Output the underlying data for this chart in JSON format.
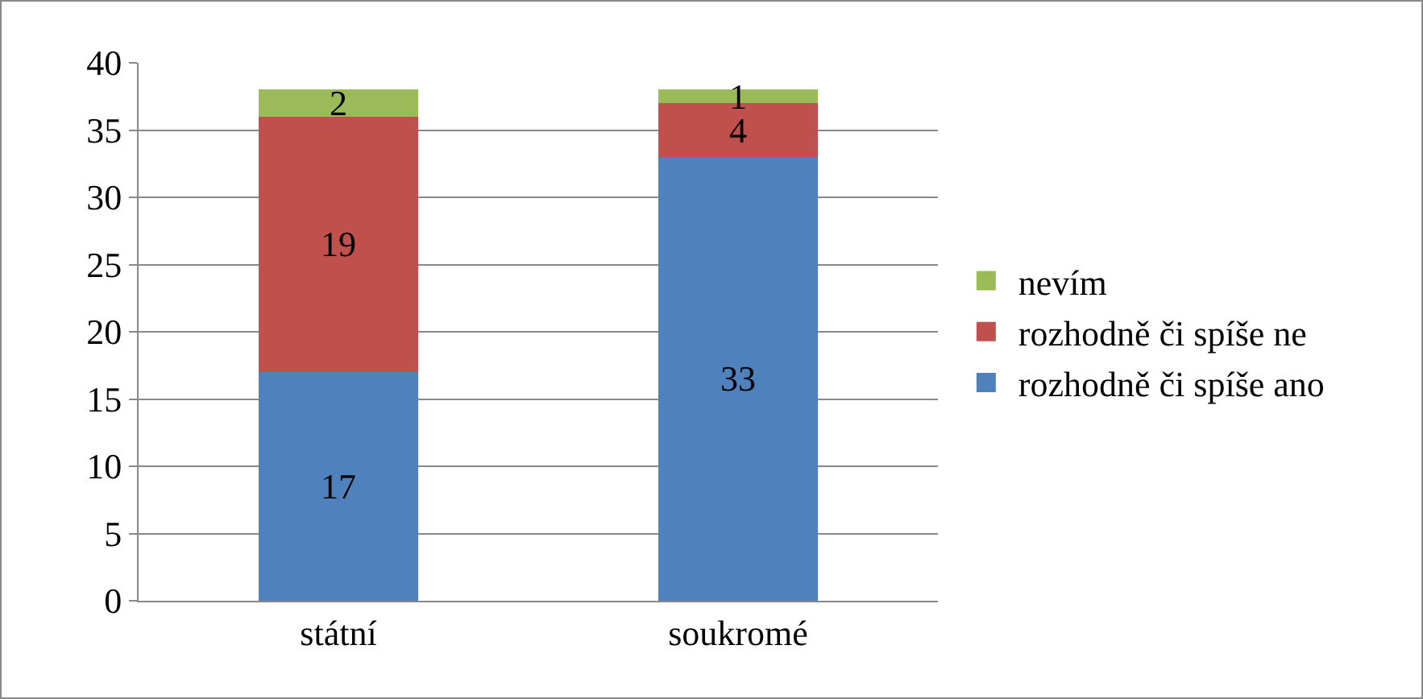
{
  "chart_data": {
    "type": "bar",
    "stacked": true,
    "categories": [
      "státní",
      "soukromé"
    ],
    "series": [
      {
        "name": "rozhodně či spíše ano",
        "color": "#4f81bd",
        "values": [
          17,
          33
        ]
      },
      {
        "name": "rozhodně či spíše ne",
        "color": "#c0504d",
        "values": [
          19,
          4
        ]
      },
      {
        "name": "nevím",
        "color": "#9bbb59",
        "values": [
          2,
          1
        ]
      }
    ],
    "ylim": [
      0,
      40
    ],
    "yticks": [
      0,
      5,
      10,
      15,
      20,
      25,
      30,
      35,
      40
    ],
    "grid": "y",
    "legend": "right",
    "data_labels": true
  }
}
